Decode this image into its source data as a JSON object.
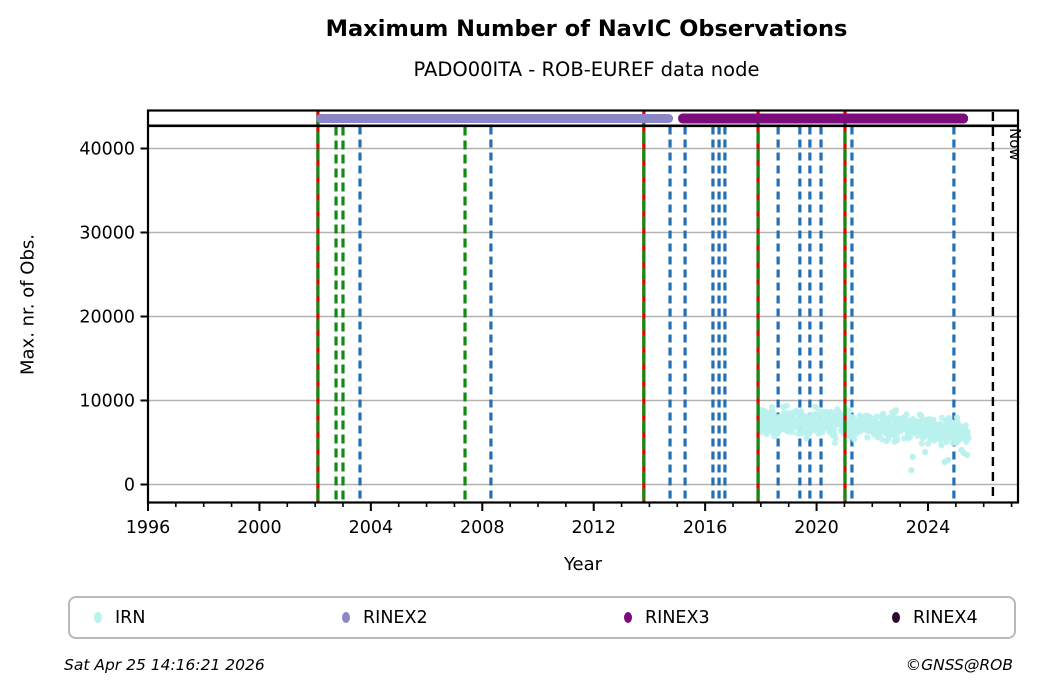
{
  "title": "Maximum Number of NavIC Observations",
  "subtitle": "PADO00ITA - ROB-EUREF data node",
  "footer": {
    "timestamp": "Sat Apr 25 14:16:21 2026",
    "copyright": "©GNSS@ROB"
  },
  "chart_data": {
    "type": "scatter",
    "title": "Maximum Number of NavIC Observations",
    "subtitle": "PADO00ITA - ROB-EUREF data node",
    "xlabel": "Year",
    "ylabel": "Max. nr. of Obs.",
    "xlim": [
      1996,
      2027.25
    ],
    "ylim": [
      -2150,
      44500
    ],
    "xticks": [
      1996,
      2000,
      2004,
      2008,
      2012,
      2016,
      2020,
      2024
    ],
    "minor_xtick_step": 1,
    "yticks": [
      0,
      10000,
      20000,
      30000,
      40000
    ],
    "grid": true,
    "grid_color": "#b3b3b3",
    "max_possible_line": 42700,
    "now_marker": {
      "label": "Now",
      "x": 2026.33,
      "color": "#000000"
    },
    "availability_bars": [
      {
        "name": "RINEX2",
        "start": 2002.03,
        "end": 2014.85,
        "color": "#8a86c8"
      },
      {
        "name": "RINEX3",
        "start": 2015.03,
        "end": 2025.44,
        "color": "#7d0b7d"
      }
    ],
    "event_lines": {
      "receiver_and_antenna_change_green_red": [
        2002.1,
        2013.8,
        2017.9,
        2021.02
      ],
      "receiver_change_green": [
        2002.75,
        2003.0,
        2007.38
      ],
      "firmware_change_blue": [
        2003.61,
        2008.31,
        2014.74,
        2015.28,
        2016.28,
        2016.5,
        2016.71,
        2018.62,
        2019.4,
        2019.76,
        2020.16,
        2021.27,
        2024.93
      ]
    },
    "colors": {
      "green": "#138a13",
      "red": "#e00000",
      "blue": "#2470b4",
      "irn": "#b9f1ee",
      "rinex2": "#8a86c8",
      "rinex3": "#7d0b7d",
      "rinex4": "#2d0a30"
    },
    "irn_series": {
      "name": "IRN",
      "color": "#b9f1ee",
      "x_start": 2017.95,
      "x_end": 2025.44,
      "points_count": 680,
      "band": [
        {
          "x": 2018.0,
          "mean": 7600,
          "spread": 2000
        },
        {
          "x": 2019.0,
          "mean": 7500,
          "spread": 2050
        },
        {
          "x": 2020.0,
          "mean": 7300,
          "spread": 2100
        },
        {
          "x": 2021.0,
          "mean": 7100,
          "spread": 2150
        },
        {
          "x": 2022.0,
          "mean": 7000,
          "spread": 2100
        },
        {
          "x": 2023.0,
          "mean": 6900,
          "spread": 2100
        },
        {
          "x": 2024.0,
          "mean": 6600,
          "spread": 2000
        },
        {
          "x": 2025.0,
          "mean": 6400,
          "spread": 1900
        },
        {
          "x": 2025.44,
          "mean": 5800,
          "spread": 1400
        }
      ],
      "outliers": [
        [
          2023.4,
          1720
        ],
        [
          2023.45,
          3270
        ],
        [
          2023.9,
          3870
        ],
        [
          2024.6,
          2680
        ],
        [
          2024.72,
          2920
        ],
        [
          2025.2,
          4110
        ],
        [
          2025.28,
          3750
        ],
        [
          2025.4,
          3510
        ]
      ]
    },
    "legend": [
      {
        "label": "IRN",
        "color": "#b9f1ee"
      },
      {
        "label": "RINEX2",
        "color": "#8a86c8"
      },
      {
        "label": "RINEX3",
        "color": "#7d0b7d"
      },
      {
        "label": "RINEX4",
        "color": "#2d0a30"
      }
    ],
    "legend_position": "bottom"
  }
}
